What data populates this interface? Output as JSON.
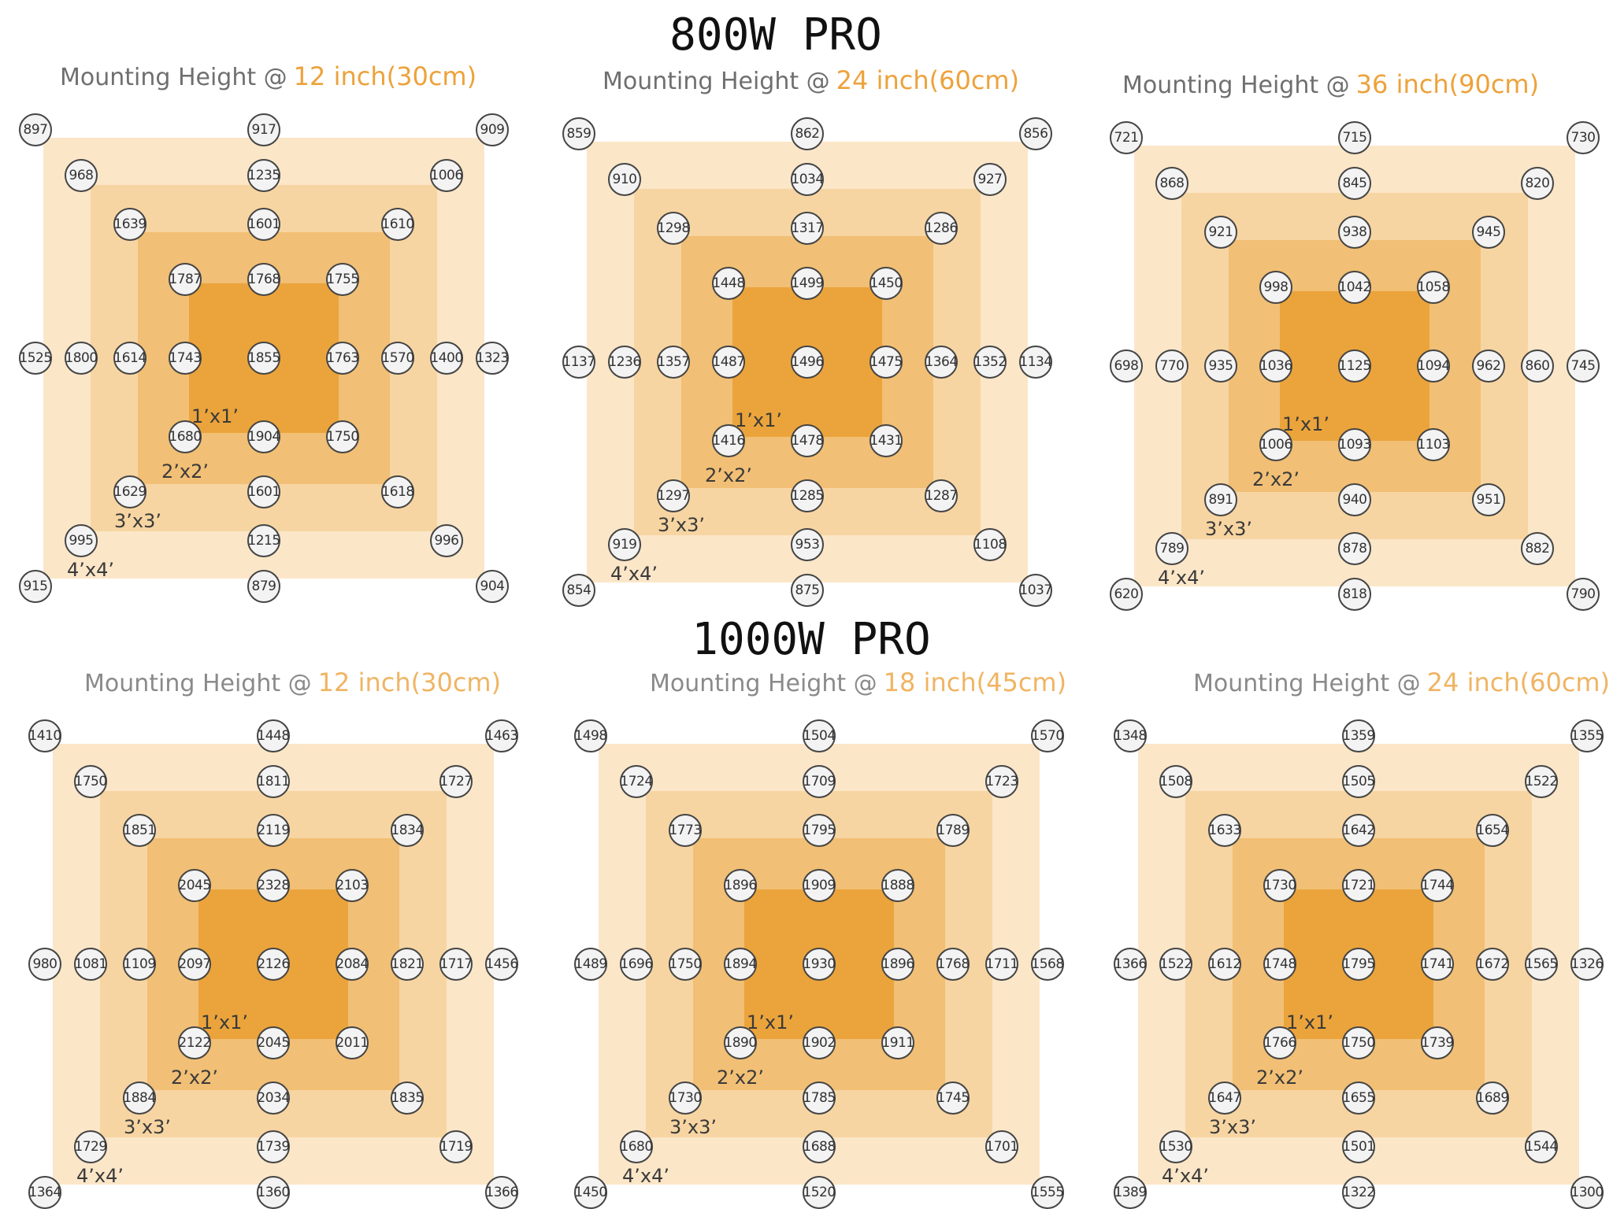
{
  "titles": {
    "top": "800W PRO",
    "bottom": "1000W PRO"
  },
  "colors": {
    "zone_4x4": "#fbe6c8",
    "zone_3x3": "#f7d5a2",
    "zone_2x2": "#f1bf75",
    "zone_1x1": "#eba43b",
    "height_value": "#eda23b"
  },
  "zone_labels": {
    "z1": "1’x1’",
    "z2": "2’x2’",
    "z3": "3’x3’",
    "z4": "4’x4’"
  },
  "charts": [
    {
      "label": "Mounting Height @",
      "height": "12 inch(30cm)",
      "outer": [
        "897",
        "917",
        "909",
        "1323",
        "904",
        "879",
        "915",
        "1525"
      ],
      "ring3": [
        "968",
        "1235",
        "1006",
        "1400",
        "996",
        "1215",
        "995",
        "1800"
      ],
      "ring2": [
        "1639",
        "1601",
        "1610",
        "1570",
        "1618",
        "1601",
        "1629",
        "1614"
      ],
      "ring1": [
        "1787",
        "1768",
        "1755",
        "1763",
        "1750",
        "1904",
        "1680",
        "1743"
      ],
      "center": "1855"
    },
    {
      "label": "Mounting Height @",
      "height": "24 inch(60cm)",
      "outer": [
        "859",
        "862",
        "856",
        "1134",
        "1037",
        "875",
        "854",
        "1137"
      ],
      "ring3": [
        "910",
        "1034",
        "927",
        "1352",
        "1108",
        "953",
        "919",
        "1236"
      ],
      "ring2": [
        "1298",
        "1317",
        "1286",
        "1364",
        "1287",
        "1285",
        "1297",
        "1357"
      ],
      "ring1": [
        "1448",
        "1499",
        "1450",
        "1475",
        "1431",
        "1478",
        "1416",
        "1487"
      ],
      "center": "1496"
    },
    {
      "label": "Mounting Height @",
      "height": "36 inch(90cm)",
      "outer": [
        "721",
        "715",
        "730",
        "745",
        "790",
        "818",
        "620",
        "698"
      ],
      "ring3": [
        "868",
        "845",
        "820",
        "860",
        "882",
        "878",
        "789",
        "770"
      ],
      "ring2": [
        "921",
        "938",
        "945",
        "962",
        "951",
        "940",
        "891",
        "935"
      ],
      "ring1": [
        "998",
        "1042",
        "1058",
        "1094",
        "1103",
        "1093",
        "1006",
        "1036"
      ],
      "center": "1125"
    },
    {
      "label": "Mounting Height @",
      "height": "12 inch(30cm)",
      "outer": [
        "1410",
        "1448",
        "1463",
        "1456",
        "1366",
        "1360",
        "1364",
        "980"
      ],
      "ring3": [
        "1750",
        "1811",
        "1727",
        "1717",
        "1719",
        "1739",
        "1729",
        "1081"
      ],
      "ring2": [
        "1851",
        "2119",
        "1834",
        "1821",
        "1835",
        "2034",
        "1884",
        "1109"
      ],
      "ring1": [
        "2045",
        "2328",
        "2103",
        "2084",
        "2011",
        "2045",
        "2122",
        "2097"
      ],
      "center": "2126"
    },
    {
      "label": "Mounting Height @",
      "height": "18 inch(45cm)",
      "outer": [
        "1498",
        "1504",
        "1570",
        "1568",
        "1555",
        "1520",
        "1450",
        "1489"
      ],
      "ring3": [
        "1724",
        "1709",
        "1723",
        "1711",
        "1701",
        "1688",
        "1680",
        "1696"
      ],
      "ring2": [
        "1773",
        "1795",
        "1789",
        "1768",
        "1745",
        "1785",
        "1730",
        "1750"
      ],
      "ring1": [
        "1896",
        "1909",
        "1888",
        "1896",
        "1911",
        "1902",
        "1890",
        "1894"
      ],
      "center": "1930"
    },
    {
      "label": "Mounting Height @",
      "height": "24 inch(60cm)",
      "outer": [
        "1348",
        "1359",
        "1355",
        "1326",
        "1300",
        "1322",
        "1389",
        "1366"
      ],
      "ring3": [
        "1508",
        "1505",
        "1522",
        "1565",
        "1544",
        "1501",
        "1530",
        "1522"
      ],
      "ring2": [
        "1633",
        "1642",
        "1654",
        "1672",
        "1689",
        "1655",
        "1647",
        "1612"
      ],
      "ring1": [
        "1730",
        "1721",
        "1744",
        "1741",
        "1739",
        "1750",
        "1766",
        "1748"
      ],
      "center": "1795"
    }
  ]
}
